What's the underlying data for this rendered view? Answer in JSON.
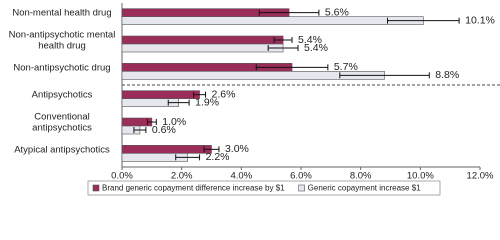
{
  "chart_data": {
    "type": "bar",
    "orientation": "horizontal",
    "categories": [
      "Non-mental health drug",
      "Non-antipsychotic mental health drug",
      "Non-antipsychotic drug",
      "Antipsychotics",
      "Conventional antipsychotics",
      "Atypical antipsychotics"
    ],
    "series": [
      {
        "name": "Brand generic copayment difference increase by $1",
        "color": "#9b2d5a",
        "values": [
          5.6,
          5.4,
          5.7,
          2.6,
          1.0,
          3.0
        ],
        "errors": [
          1.0,
          0.3,
          1.2,
          0.2,
          0.15,
          0.25
        ],
        "value_labels": [
          "5.6%",
          "5.4%",
          "5.7%",
          "2.6%",
          "1.0%",
          "3.0%"
        ]
      },
      {
        "name": "Generic copayment increase $1",
        "color": "#e6e6ee",
        "values": [
          10.1,
          5.4,
          8.8,
          1.9,
          0.6,
          2.2
        ],
        "errors": [
          1.2,
          0.5,
          1.5,
          0.35,
          0.2,
          0.4
        ],
        "value_labels": [
          "10.1%",
          "5.4%",
          "8.8%",
          "1.9%",
          "0.6%",
          "2.2%"
        ]
      }
    ],
    "xlim": [
      0,
      12
    ],
    "xticks": [
      {
        "value": 0,
        "label": "0.0%"
      },
      {
        "value": 2,
        "label": "2.0%"
      },
      {
        "value": 4,
        "label": "4.0%"
      },
      {
        "value": 6,
        "label": "6.0%"
      },
      {
        "value": 8,
        "label": "8.0%"
      },
      {
        "value": 10,
        "label": "10.0%"
      },
      {
        "value": 12,
        "label": "12.0%"
      }
    ],
    "legend": "bottom"
  }
}
